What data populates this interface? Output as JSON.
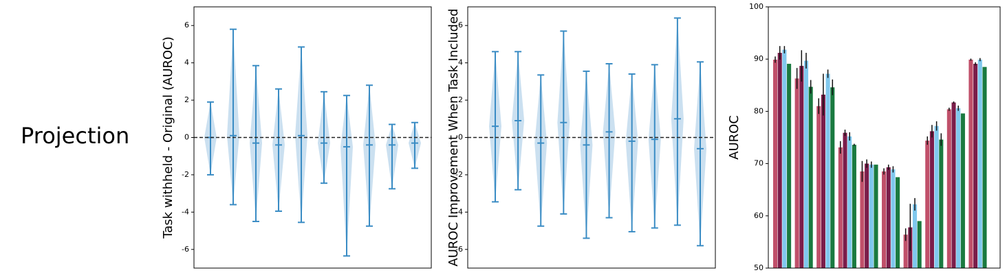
{
  "row_label": "Projection",
  "chart_data": [
    {
      "type": "errorbar",
      "ylabel": "Task withheld - Original (AUROC)",
      "color": "#3a8cc4",
      "hline": 0,
      "ylim": [
        -7,
        7
      ],
      "yticks": [
        -6,
        -4,
        -2,
        0,
        2,
        4,
        6
      ],
      "values": [
        0.0,
        0.1,
        -0.3,
        -0.4,
        0.1,
        -0.3,
        -0.5,
        -0.4,
        -0.4,
        -0.3
      ],
      "lower": [
        -2.0,
        -3.6,
        -4.5,
        -3.95,
        -4.55,
        -2.45,
        -6.35,
        -4.75,
        -2.75,
        -1.65
      ],
      "upper": [
        1.9,
        5.8,
        3.85,
        2.6,
        4.85,
        2.45,
        2.25,
        2.8,
        0.7,
        0.8
      ]
    },
    {
      "type": "errorbar",
      "ylabel": "AUROC Improvement When Task Included",
      "color": "#3a8cc4",
      "hline": 0,
      "ylim": [
        -7,
        7
      ],
      "yticks": [
        -6,
        -4,
        -2,
        0,
        2,
        4,
        6
      ],
      "values": [
        0.6,
        0.9,
        -0.3,
        0.8,
        -0.4,
        0.3,
        -0.2,
        -0.1,
        1.0,
        -0.6
      ],
      "lower": [
        -3.45,
        -2.8,
        -4.75,
        -4.1,
        -5.4,
        -4.3,
        -5.05,
        -4.85,
        -4.7,
        -5.8
      ],
      "upper": [
        4.6,
        4.6,
        3.35,
        5.7,
        3.55,
        3.95,
        3.4,
        3.9,
        6.4,
        4.05
      ]
    },
    {
      "type": "bar",
      "ylabel": "AUROC",
      "ylim": [
        50,
        100
      ],
      "yticks": [
        50,
        60,
        70,
        80,
        90,
        100
      ],
      "series": [
        {
          "color": "#c0506a",
          "values": [
            89.9,
            86.3,
            81.0,
            73.1,
            68.5,
            68.5,
            56.4,
            74.4,
            80.4,
            89.9
          ],
          "errors": [
            0.6,
            2.0,
            1.5,
            1.2,
            2.0,
            0.6,
            1.2,
            0.8,
            0.3,
            0.2
          ]
        },
        {
          "color": "#7b1d4a",
          "values": [
            91.2,
            88.7,
            83.2,
            75.9,
            70.0,
            69.3,
            57.8,
            76.2,
            81.7,
            89.1
          ],
          "errors": [
            1.3,
            3.0,
            4.0,
            0.6,
            0.8,
            0.5,
            4.5,
            1.2,
            0.2,
            0.3
          ]
        },
        {
          "color": "#80c8ee",
          "values": [
            91.8,
            89.7,
            87.2,
            75.2,
            69.8,
            68.9,
            62.2,
            77.2,
            80.6,
            89.9
          ],
          "errors": [
            0.7,
            1.5,
            0.8,
            0.8,
            0.6,
            0.6,
            1.2,
            0.9,
            0.5,
            0.3
          ]
        },
        {
          "color": "#1a7a40",
          "values": [
            89.1,
            84.7,
            84.6,
            73.6,
            69.8,
            67.4,
            59.0,
            74.6,
            79.6,
            88.5
          ],
          "errors": [
            0,
            1.3,
            1.5,
            0.2,
            0,
            0,
            0,
            1.2,
            0,
            0
          ]
        }
      ]
    }
  ]
}
